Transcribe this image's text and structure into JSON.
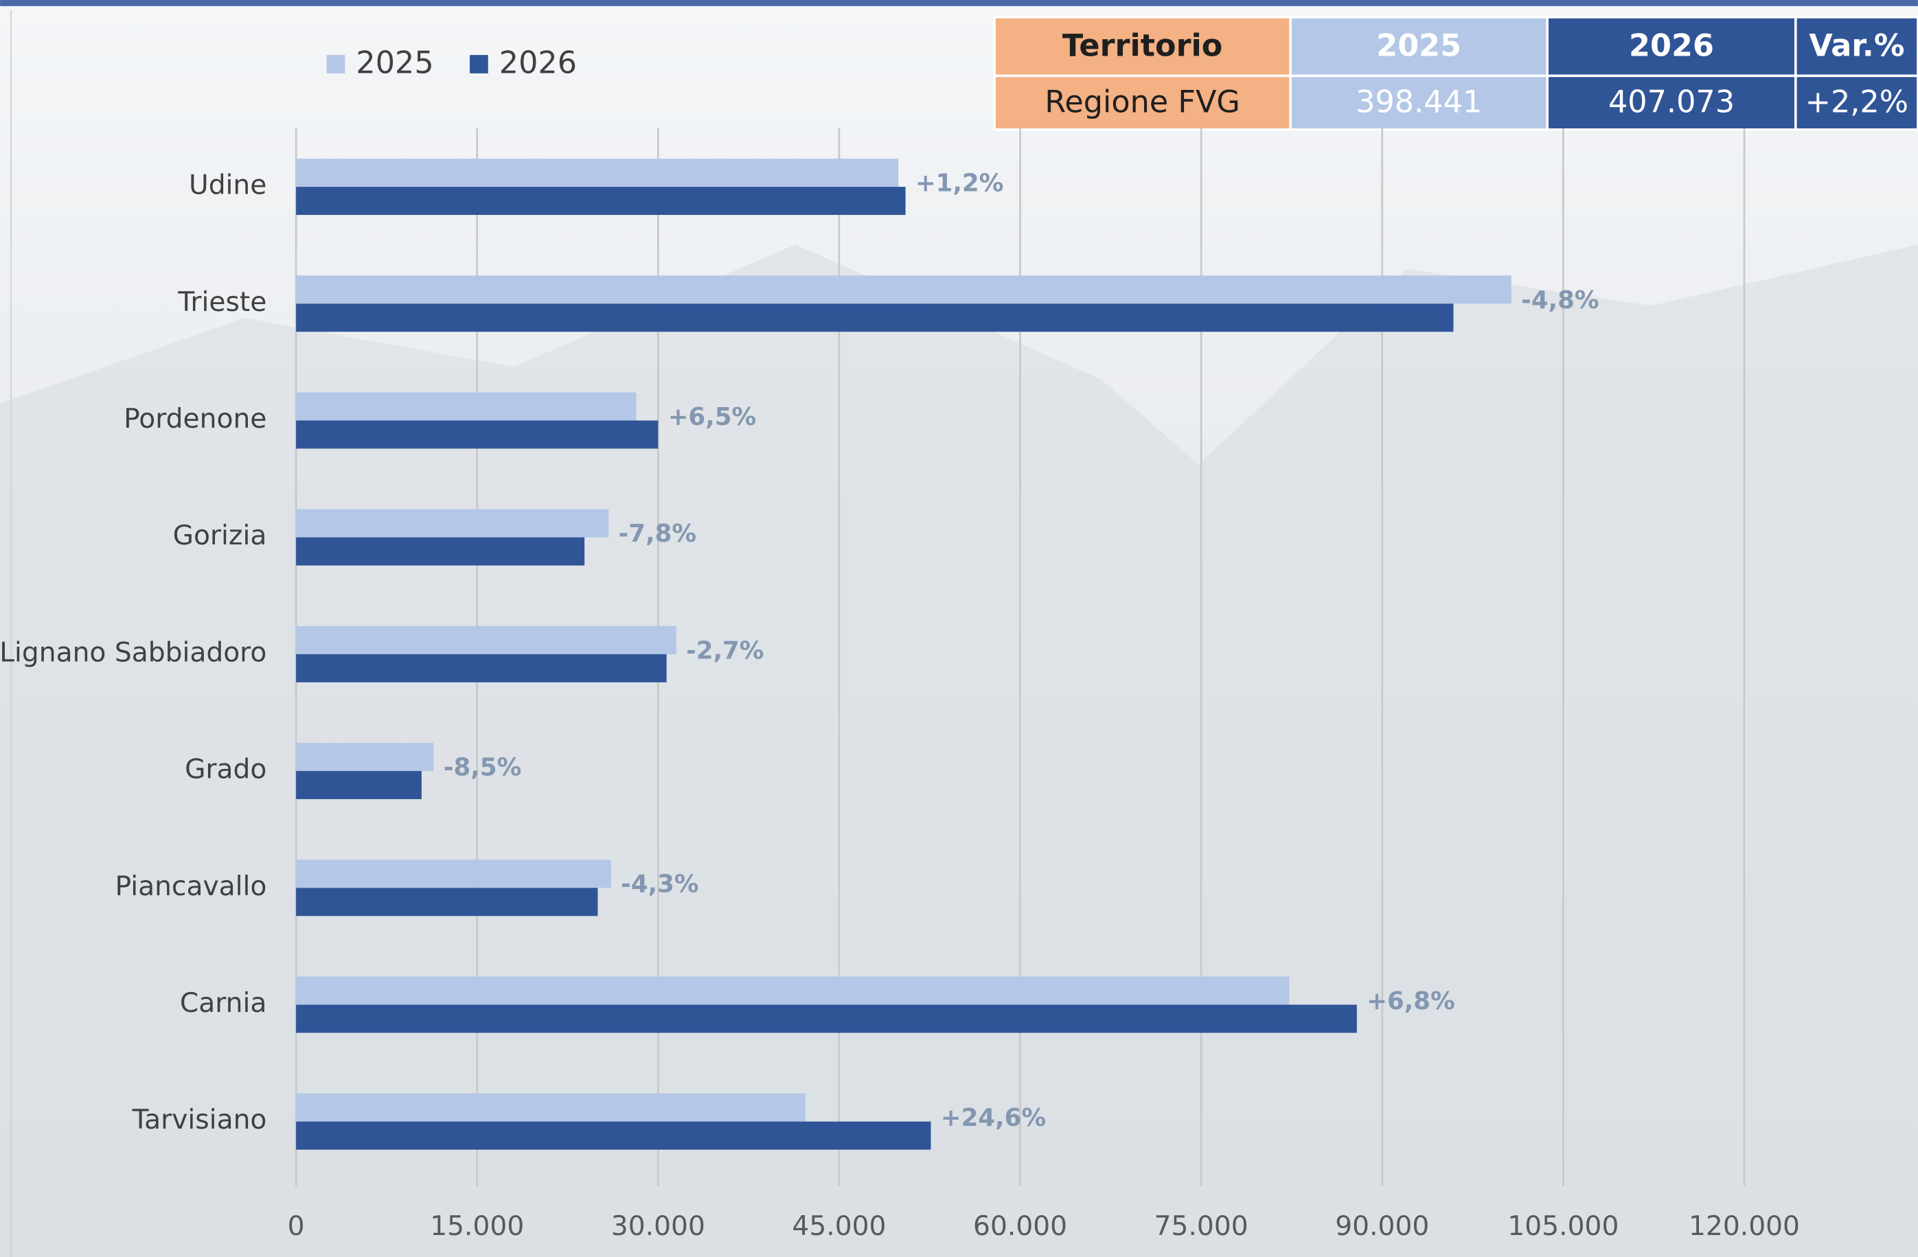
{
  "chart_data": {
    "type": "hbar",
    "categories": [
      "Udine",
      "Trieste",
      "Pordenone",
      "Gorizia",
      "Lignano Sabbiadoro",
      "Grado",
      "Piancavallo",
      "Carnia",
      "Tarvisiano"
    ],
    "series": [
      {
        "name": "2025",
        "color": "#b4c7e7",
        "values": [
          49900,
          100700,
          28200,
          25900,
          31500,
          11400,
          26100,
          82300,
          42200
        ]
      },
      {
        "name": "2026",
        "color": "#2f5597",
        "values": [
          50500,
          95900,
          30000,
          23900,
          30700,
          10400,
          25000,
          87900,
          52600
        ]
      }
    ],
    "changes": [
      "+1,2%",
      "-4,8%",
      "+6,5%",
      "-7,8%",
      "-2,7%",
      "-8,5%",
      "-4,3%",
      "+6,8%",
      "+24,6%"
    ],
    "xlim": [
      0,
      135000
    ],
    "xticks": [
      0,
      {
        "value": 15000,
        "label": "15.000"
      },
      {
        "value": 30000,
        "label": "30.000"
      },
      {
        "value": 45000,
        "label": "45.000"
      },
      {
        "value": 60000,
        "label": "60.000"
      },
      {
        "value": 75000,
        "label": "75.000"
      },
      {
        "value": 90000,
        "label": "90.000"
      },
      {
        "value": 105000,
        "label": "105.000"
      },
      {
        "value": 120000,
        "label": "120.000"
      }
    ],
    "grid": true,
    "legend": "top-left"
  },
  "table": {
    "header": [
      "Territorio",
      "2025",
      "2026",
      "Var.%"
    ],
    "rows": [
      [
        "Regione FVG",
        "398.441",
        "407.073",
        "+2,2%"
      ]
    ]
  }
}
